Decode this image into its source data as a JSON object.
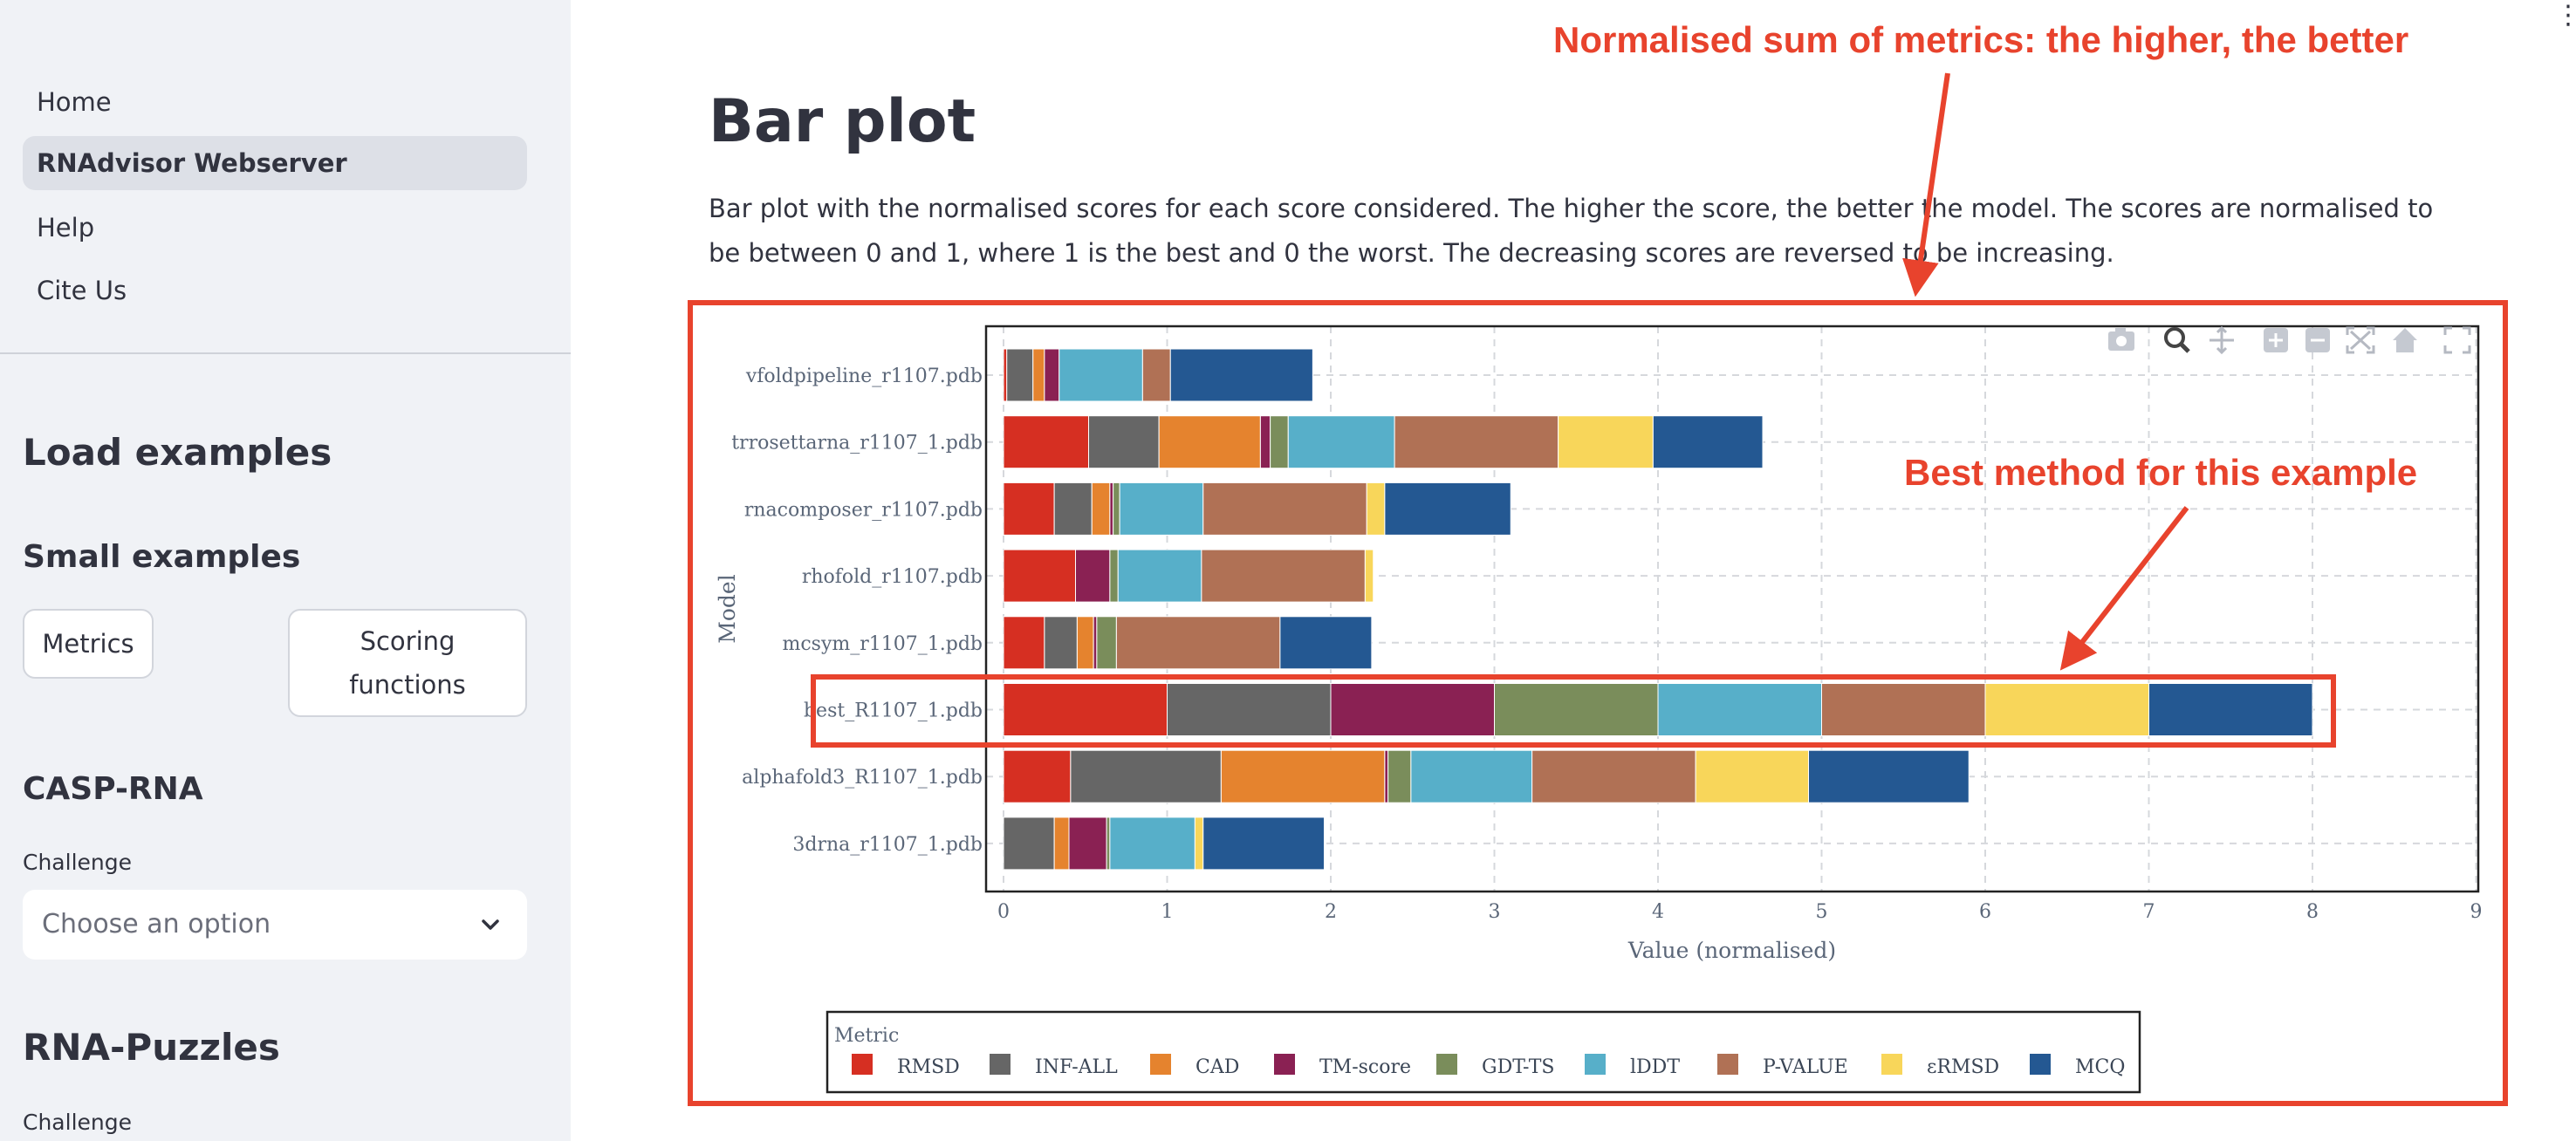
{
  "sidebar": {
    "nav": [
      {
        "label": "Home",
        "active": false
      },
      {
        "label": "RNAdvisor Webserver",
        "active": true
      },
      {
        "label": "Help",
        "active": false
      },
      {
        "label": "Cite Us",
        "active": false
      }
    ],
    "load_examples_title": "Load examples",
    "small_examples_title": "Small examples",
    "metrics_button": "Metrics",
    "scoring_button_line1": "Scoring",
    "scoring_button_line2": "functions",
    "casp_title": "CASP-RNA",
    "challenge_label": "Challenge",
    "challenge_placeholder": "Choose an option",
    "puzzles_title": "RNA-Puzzles",
    "puzzles_challenge_label": "Challenge"
  },
  "main": {
    "title": "Bar plot",
    "description": "Bar plot with the normalised scores for each score considered. The higher the score, the better the model. The scores are normalised to be between 0 and 1, where 1 is the best and 0 the worst. The decreasing scores are reversed to be increasing."
  },
  "annotations": {
    "top": "Normalised sum of metrics: the higher, the better",
    "best": "Best method for this example"
  },
  "toolbar_icons": [
    "camera-icon",
    "zoom-icon",
    "pan-icon",
    "zoom-in-icon",
    "zoom-out-icon",
    "autoscale-icon",
    "home-icon",
    "fullscreen-icon"
  ],
  "chart_data": {
    "type": "bar",
    "orientation": "horizontal",
    "stacked": true,
    "xlabel": "Value (normalised)",
    "ylabel": "Model",
    "xlim": [
      0,
      9
    ],
    "xticks": [
      0,
      1,
      2,
      3,
      4,
      5,
      6,
      7,
      8,
      9
    ],
    "grid": true,
    "legend_title": "Metric",
    "legend_position": "bottom",
    "categories": [
      "vfoldpipeline_r1107.pdb",
      "trrosettarna_r1107_1.pdb",
      "rnacomposer_r1107.pdb",
      "rhofold_r1107.pdb",
      "mcsym_r1107_1.pdb",
      "best_R1107_1.pdb",
      "alphafold3_R1107_1.pdb",
      "3drna_r1107_1.pdb"
    ],
    "series": [
      {
        "name": "RMSD",
        "color": "#d62f22",
        "values": [
          0.02,
          0.52,
          0.31,
          0.44,
          0.25,
          1.0,
          0.41,
          0.0
        ]
      },
      {
        "name": "INF-ALL",
        "color": "#666666",
        "values": [
          0.16,
          0.43,
          0.23,
          0.0,
          0.2,
          1.0,
          0.92,
          0.31
        ]
      },
      {
        "name": "CAD",
        "color": "#e5832e",
        "values": [
          0.07,
          0.62,
          0.11,
          0.0,
          0.1,
          0.0,
          1.0,
          0.09
        ]
      },
      {
        "name": "TM-score",
        "color": "#8a2153",
        "values": [
          0.09,
          0.06,
          0.02,
          0.21,
          0.02,
          1.0,
          0.02,
          0.23
        ]
      },
      {
        "name": "GDT-TS",
        "color": "#7a8d5b",
        "values": [
          0.0,
          0.11,
          0.04,
          0.05,
          0.12,
          1.0,
          0.14,
          0.02
        ]
      },
      {
        "name": "lDDT",
        "color": "#57afc9",
        "values": [
          0.51,
          0.65,
          0.51,
          0.51,
          0.0,
          1.0,
          0.74,
          0.52
        ]
      },
      {
        "name": "P-VALUE",
        "color": "#b07155",
        "values": [
          0.17,
          1.0,
          1.0,
          1.0,
          1.0,
          1.0,
          1.0,
          0.0
        ]
      },
      {
        "name": "εRMSD",
        "color": "#f8d65a",
        "values": [
          0.0,
          0.58,
          0.11,
          0.05,
          0.0,
          1.0,
          0.69,
          0.05
        ]
      },
      {
        "name": "MCQ",
        "color": "#245892",
        "values": [
          0.87,
          0.67,
          0.77,
          0.0,
          0.56,
          1.0,
          0.98,
          0.74
        ]
      }
    ]
  }
}
